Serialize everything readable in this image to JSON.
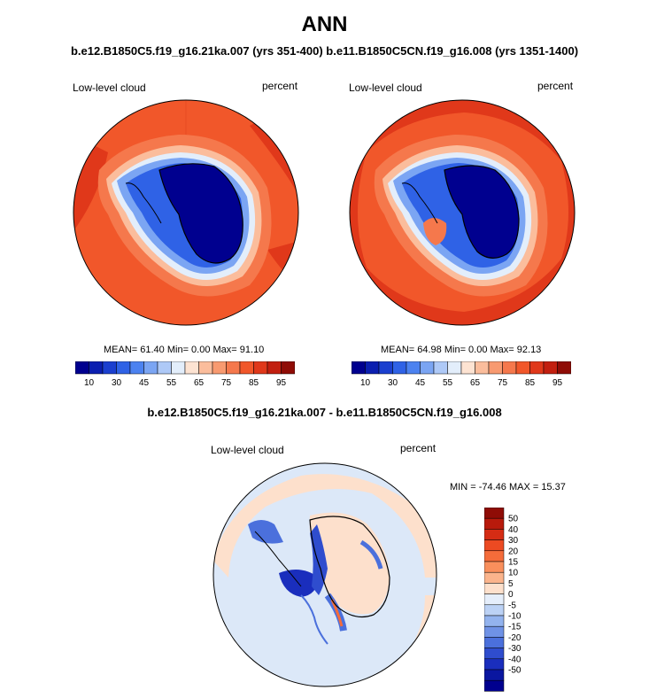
{
  "title": "ANN",
  "subtitle_top": "b.e12.B1850C5.f19_g16.21ka.007 (yrs 351-400) b.e11.B1850C5CN.f19_g16.008 (yrs 1351-1400)",
  "panels": [
    {
      "variable": "Low-level cloud",
      "units": "percent",
      "stats": "MEAN= 61.40  Min=   0.00  Max=  91.10"
    },
    {
      "variable": "Low-level cloud",
      "units": "percent",
      "stats": "MEAN= 64.98  Min=   0.00  Max=  92.13"
    }
  ],
  "abs_colorbar": {
    "colors": [
      "#00008f",
      "#0b1fb0",
      "#1b3fcf",
      "#2f62e6",
      "#4c82f0",
      "#7ba5f3",
      "#aec9f7",
      "#e3eefb",
      "#fde3d2",
      "#fbbd9c",
      "#f89a70",
      "#f5784c",
      "#f1572a",
      "#e0381a",
      "#c21f0f",
      "#8f0c06"
    ],
    "labels": [
      "10",
      "30",
      "45",
      "55",
      "65",
      "75",
      "85",
      "95"
    ]
  },
  "diff_panel": {
    "title": "b.e12.B1850C5.f19_g16.21ka.007 - b.e11.B1850C5CN.f19_g16.008",
    "variable": "Low-level cloud",
    "units": "percent",
    "stats": "MIN = -74.46 MAX =  15.37"
  },
  "diff_colorbar": {
    "colors": [
      "#8f0c06",
      "#b81a0c",
      "#d52c14",
      "#ec4a22",
      "#f56c3a",
      "#f98f5c",
      "#fbb48c",
      "#fde0cc",
      "#e5eefb",
      "#bcd2f5",
      "#93b3ee",
      "#6f92e6",
      "#4b70dc",
      "#2f4dce",
      "#1a2ebd",
      "#0a16a0",
      "#00008f"
    ],
    "labels": [
      "50",
      "40",
      "30",
      "20",
      "15",
      "10",
      "5",
      "0",
      "-5",
      "-10",
      "-15",
      "-20",
      "-30",
      "-40",
      "-50"
    ]
  }
}
